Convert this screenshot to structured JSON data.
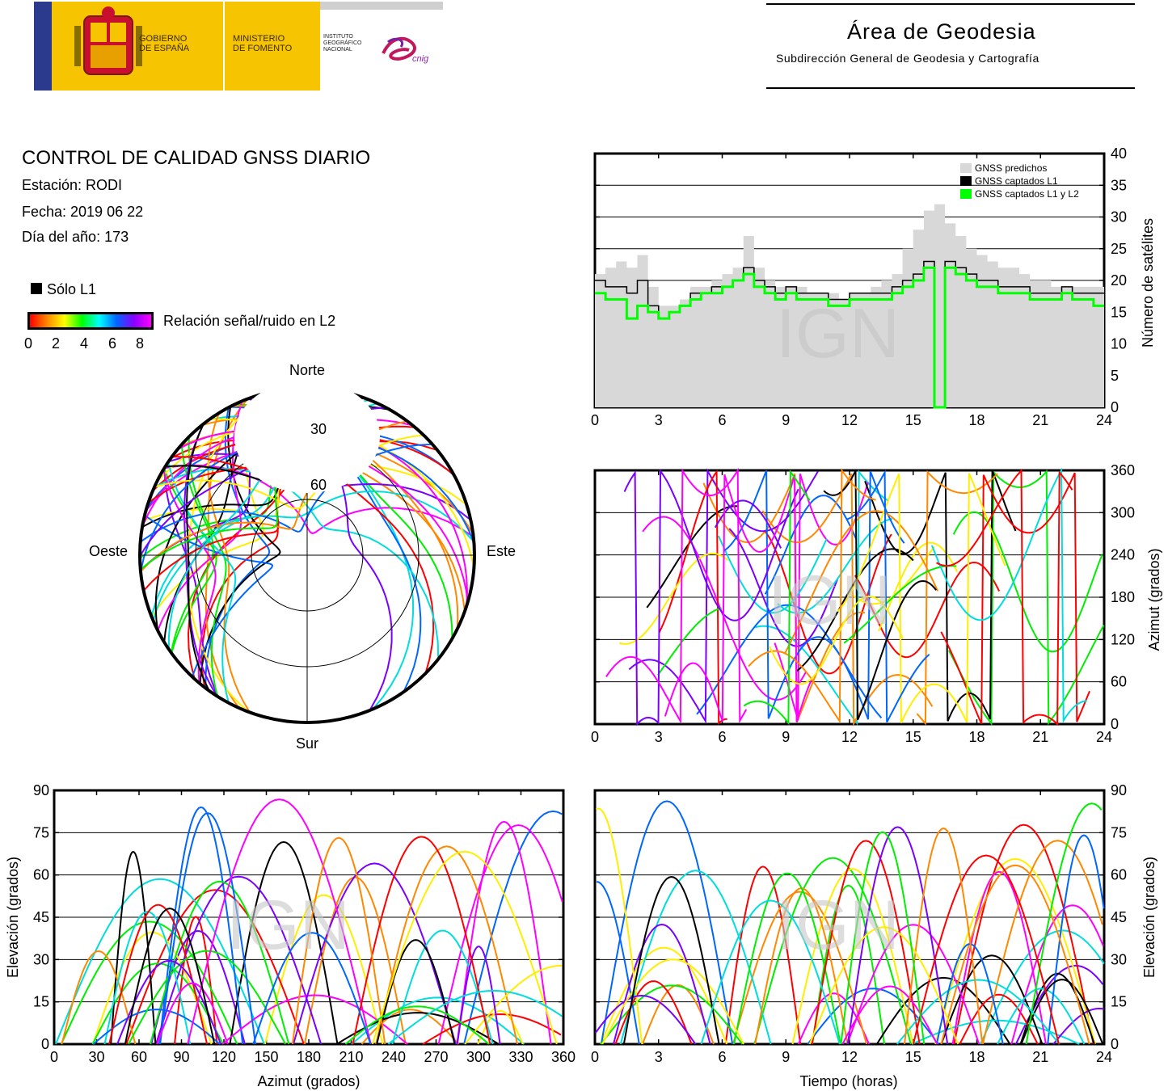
{
  "header": {
    "gobierno": [
      "GOBIERNO",
      "DE ESPAÑA"
    ],
    "ministerio": [
      "MINISTERIO",
      "DE FOMENTO"
    ],
    "instituto": [
      "INSTITUTO",
      "GEOGRÁFICO",
      "NACIONAL"
    ],
    "cnig": "cnig",
    "area_title": "Área de Geodesia",
    "area_subtitle": "Subdirección General de Geodesia y Cartografía"
  },
  "report": {
    "title": "CONTROL DE CALIDAD GNSS DIARIO",
    "station": "Estación: RODI",
    "date": "Fecha: 2019 06 22",
    "doy": "Día del año: 173"
  },
  "legend": {
    "l1_only": "Sólo L1",
    "snr_label": "Relación señal/ruido en L2",
    "snr_ticks": [
      "0",
      "2",
      "4",
      "6",
      "8"
    ]
  },
  "watermark": "IGN",
  "chart_data": [
    {
      "id": "satellite_count",
      "type": "area",
      "xlabel": "",
      "ylabel": "Número de satélites",
      "xlim": [
        0,
        24
      ],
      "ylim": [
        0,
        40
      ],
      "xticks": [
        "0",
        "3",
        "6",
        "9",
        "12",
        "15",
        "18",
        "21",
        "24"
      ],
      "yticks": [
        "0",
        "5",
        "10",
        "15",
        "20",
        "25",
        "30",
        "35",
        "40"
      ],
      "legend_position": "top-right",
      "x": [
        0,
        0.5,
        1,
        1.5,
        2,
        2.5,
        3,
        3.5,
        4,
        4.5,
        5,
        5.5,
        6,
        6.5,
        7,
        7.5,
        8,
        8.5,
        9,
        9.5,
        10,
        10.5,
        11,
        11.5,
        12,
        12.5,
        13,
        13.5,
        14,
        14.5,
        15,
        15.5,
        16,
        16.5,
        17,
        17.5,
        18,
        18.5,
        19,
        19.5,
        20,
        20.5,
        21,
        21.5,
        22,
        22.5,
        23,
        23.5,
        24
      ],
      "series": [
        {
          "name": "GNSS predichos",
          "color": "#d8d8d8",
          "values": [
            21,
            22,
            23,
            22,
            24,
            19,
            16,
            16,
            17,
            19,
            19,
            20,
            21,
            22,
            27,
            22,
            20,
            19,
            19,
            19,
            18,
            18,
            18,
            17,
            18,
            18,
            19,
            20,
            21,
            25,
            28,
            31,
            32,
            29,
            27,
            25,
            24,
            23,
            22,
            22,
            21,
            20,
            20,
            19,
            19,
            19,
            19,
            19,
            19
          ]
        },
        {
          "name": "GNSS captados L1",
          "color": "#000000",
          "values": [
            20,
            19,
            19,
            18,
            20,
            16,
            14,
            15,
            16,
            18,
            18,
            19,
            19,
            20,
            22,
            20,
            19,
            18,
            19,
            18,
            18,
            18,
            17,
            17,
            18,
            18,
            18,
            18,
            19,
            20,
            21,
            23,
            0,
            23,
            22,
            21,
            20,
            20,
            19,
            19,
            19,
            18,
            18,
            18,
            19,
            18,
            18,
            18,
            18
          ]
        },
        {
          "name": "GNSS captados L1 y L2",
          "color": "#00ff00",
          "values": [
            18,
            17,
            17,
            14,
            16,
            15,
            14,
            15,
            16,
            17,
            18,
            18,
            19,
            20,
            21,
            19,
            18,
            17,
            18,
            17,
            17,
            17,
            16,
            16,
            17,
            17,
            17,
            17,
            18,
            19,
            20,
            22,
            0,
            22,
            21,
            20,
            19,
            19,
            18,
            18,
            18,
            17,
            17,
            17,
            18,
            17,
            17,
            16,
            16
          ]
        }
      ]
    },
    {
      "id": "azimuth_vs_time",
      "type": "scatter",
      "xlabel": "",
      "ylabel": "Azimut (grados)",
      "xlim": [
        0,
        24
      ],
      "ylim": [
        0,
        360
      ],
      "xticks": [
        "0",
        "3",
        "6",
        "9",
        "12",
        "15",
        "18",
        "21",
        "24"
      ],
      "yticks": [
        "0",
        "60",
        "120",
        "180",
        "240",
        "300",
        "360"
      ]
    },
    {
      "id": "skyplot",
      "type": "scatter",
      "directions": {
        "north": "Norte",
        "south": "Sur",
        "west": "Oeste",
        "east": "Este"
      },
      "elevation_rings": [
        "30",
        "60"
      ]
    },
    {
      "id": "elevation_vs_azimuth",
      "type": "scatter",
      "xlabel": "Azimut (grados)",
      "ylabel": "Elevación (grados)",
      "xlim": [
        0,
        360
      ],
      "ylim": [
        0,
        90
      ],
      "xticks": [
        "0",
        "30",
        "60",
        "90",
        "120",
        "150",
        "180",
        "210",
        "240",
        "270",
        "300",
        "330",
        "360"
      ],
      "yticks": [
        "0",
        "15",
        "30",
        "45",
        "60",
        "75",
        "90"
      ]
    },
    {
      "id": "elevation_vs_time",
      "type": "line",
      "xlabel": "Tiempo (horas)",
      "ylabel": "Elevación (grados)",
      "xlim": [
        0,
        24
      ],
      "ylim": [
        0,
        90
      ],
      "xticks": [
        "0",
        "3",
        "6",
        "9",
        "12",
        "15",
        "18",
        "21",
        "24"
      ],
      "yticks": [
        "0",
        "15",
        "30",
        "45",
        "60",
        "75",
        "90"
      ]
    }
  ]
}
